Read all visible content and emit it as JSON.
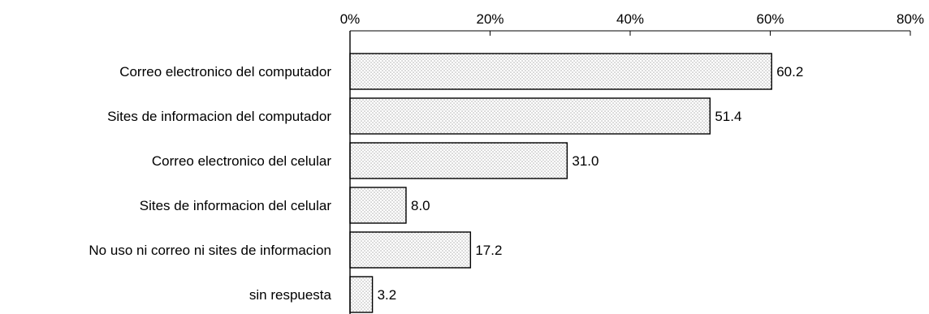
{
  "chart_data": {
    "type": "bar",
    "orientation": "horizontal",
    "categories": [
      "Correo electronico del computador",
      "Sites de informacion del computador",
      "Correo electronico del celular",
      "Sites de informacion del celular",
      "No uso ni correo ni sites de informacion",
      "sin respuesta"
    ],
    "values": [
      60.2,
      51.4,
      31.0,
      8.0,
      17.2,
      3.2
    ],
    "value_labels": [
      "60.2",
      "51.4",
      "31.0",
      "8.0",
      "17.2",
      "3.2"
    ],
    "xlim": [
      0,
      80
    ],
    "x_ticks": [
      0,
      20,
      40,
      60,
      80
    ],
    "x_tick_labels": [
      "0%",
      "20%",
      "40%",
      "60%",
      "80%"
    ],
    "x_axis_position": "top",
    "grid": false,
    "legend": "none",
    "bar_fill": "dotted-light-gray",
    "colors": {
      "bar_stroke": "#000000",
      "bar_dots": "#8a8a8a",
      "axis": "#000000",
      "text": "#000000",
      "background": "#ffffff"
    }
  }
}
